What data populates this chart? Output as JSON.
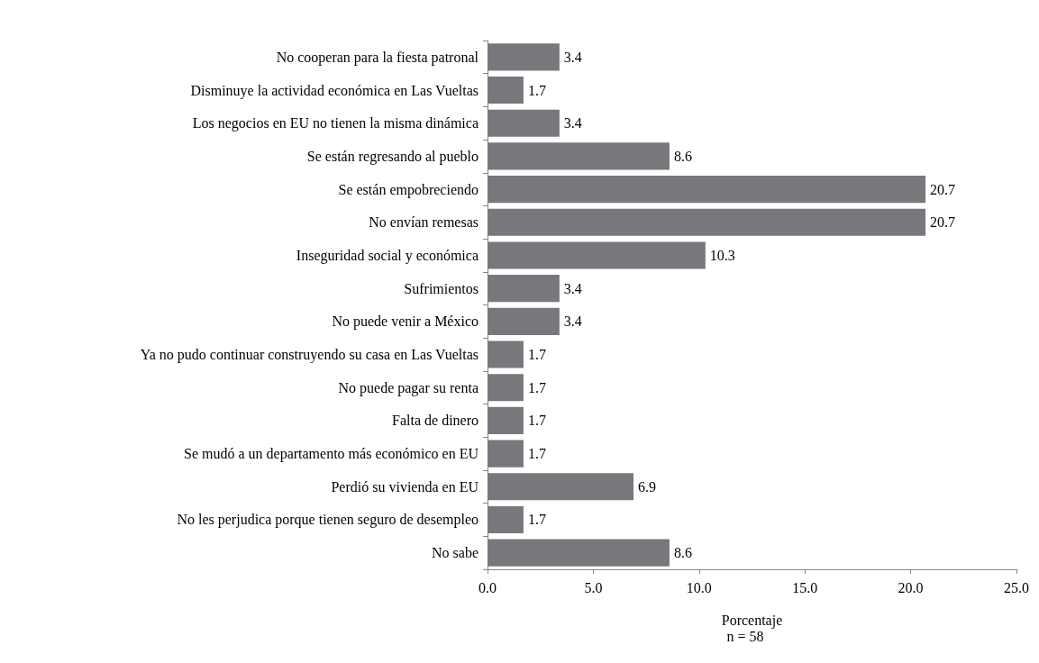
{
  "chart_data": {
    "type": "bar",
    "orientation": "horizontal",
    "xlabel": "Porcentaje",
    "annotations": [
      "n = 58"
    ],
    "categories": [
      "No cooperan para la fiesta patronal",
      "Disminuye la actividad económica en Las Vueltas",
      "Los negocios en EU no tienen la misma dinámica",
      "Se están regresando al pueblo",
      "Se están empobreciendo",
      "No envían remesas",
      "Inseguridad social y económica",
      "Sufrimientos",
      "No puede venir a México",
      "Ya no pudo continuar construyendo su casa en Las Vueltas",
      "No puede pagar su renta",
      "Falta de dinero",
      "Se mudó a un departamento más económico en EU",
      "Perdió su vivienda en EU",
      "No les perjudica porque tienen seguro de desempleo",
      "No sabe"
    ],
    "values": [
      3.4,
      1.7,
      3.4,
      8.6,
      20.7,
      20.7,
      10.3,
      3.4,
      3.4,
      1.7,
      1.7,
      1.7,
      1.7,
      6.9,
      1.7,
      8.6
    ],
    "color": "#76787b",
    "data_labels": true,
    "grid": false,
    "xlim": [
      0,
      25
    ],
    "xticks": [
      {
        "value": 0,
        "label": "0.0"
      },
      {
        "value": 5,
        "label": "5.0"
      },
      {
        "value": 10,
        "label": "10.0"
      },
      {
        "value": 15,
        "label": "15.0"
      },
      {
        "value": 20,
        "label": "20.0"
      },
      {
        "value": 25,
        "label": "25.0"
      }
    ]
  }
}
